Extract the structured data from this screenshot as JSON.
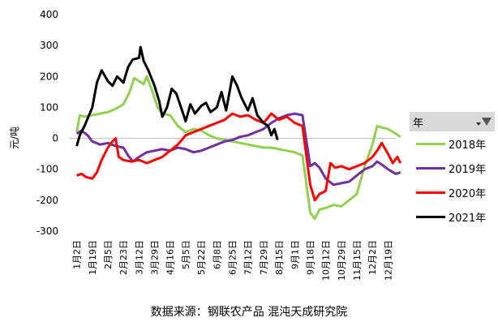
{
  "chart_data": {
    "type": "line",
    "ylabel": "元/吨",
    "ylim": [
      -300,
      400
    ],
    "yticks": [
      400,
      300,
      200,
      100,
      0,
      -100,
      -200,
      -300
    ],
    "ytick_labels": [
      "400",
      "300",
      "200",
      "100",
      "0",
      "-100",
      "-200",
      "-300"
    ],
    "grid": false,
    "legend_position": "right",
    "legend_title": "年",
    "x_tick_labels": [
      "1月2日",
      "1月19日",
      "2月5日",
      "2月23日",
      "3月12日",
      "3月29日",
      "4月16日",
      "5月5日",
      "5月22日",
      "6月8日",
      "6月25日",
      "7月12日",
      "7月29日",
      "8月15日",
      "9月1日",
      "9月18日",
      "10月12日",
      "10月29日",
      "11月15日",
      "12月2日",
      "12月19日"
    ],
    "x_count": 21,
    "series": [
      {
        "name": "2018年",
        "color": "#92d050",
        "points": [
          [
            0,
            20
          ],
          [
            0.2,
            75
          ],
          [
            0.5,
            70
          ],
          [
            1,
            75
          ],
          [
            1.5,
            80
          ],
          [
            2,
            85
          ],
          [
            2.5,
            95
          ],
          [
            3,
            110
          ],
          [
            3.4,
            150
          ],
          [
            3.7,
            195
          ],
          [
            4,
            185
          ],
          [
            4.3,
            175
          ],
          [
            4.5,
            200
          ],
          [
            4.8,
            160
          ],
          [
            5.2,
            100
          ],
          [
            5.5,
            80
          ],
          [
            6,
            75
          ],
          [
            6.5,
            40
          ],
          [
            7,
            20
          ],
          [
            7.5,
            30
          ],
          [
            8,
            25
          ],
          [
            8.5,
            10
          ],
          [
            9,
            0
          ],
          [
            9.5,
            -5
          ],
          [
            10,
            -10
          ],
          [
            10.5,
            -15
          ],
          [
            11,
            -20
          ],
          [
            11.5,
            -25
          ],
          [
            12,
            -30
          ],
          [
            12.5,
            -30
          ],
          [
            13,
            -35
          ],
          [
            13.5,
            -40
          ],
          [
            14,
            -45
          ],
          [
            14.5,
            -55
          ],
          [
            15,
            -240
          ],
          [
            15.3,
            -260
          ],
          [
            15.6,
            -230
          ],
          [
            16,
            -225
          ],
          [
            16.5,
            -215
          ],
          [
            17,
            -220
          ],
          [
            17.5,
            -200
          ],
          [
            18,
            -180
          ],
          [
            18.5,
            -90
          ],
          [
            19,
            -20
          ],
          [
            19.3,
            40
          ],
          [
            19.6,
            35
          ],
          [
            20,
            30
          ],
          [
            20.5,
            15
          ],
          [
            20.8,
            5
          ]
        ]
      },
      {
        "name": "2019年",
        "color": "#7030a0",
        "points": [
          [
            0,
            15
          ],
          [
            0.3,
            25
          ],
          [
            0.7,
            10
          ],
          [
            1,
            -10
          ],
          [
            1.5,
            -20
          ],
          [
            2,
            -15
          ],
          [
            2.5,
            -25
          ],
          [
            3,
            -30
          ],
          [
            3.3,
            -55
          ],
          [
            3.6,
            -75
          ],
          [
            4,
            -60
          ],
          [
            4.5,
            -45
          ],
          [
            5,
            -40
          ],
          [
            5.5,
            -35
          ],
          [
            6,
            -40
          ],
          [
            6.5,
            -30
          ],
          [
            7,
            -35
          ],
          [
            7.5,
            -45
          ],
          [
            8,
            -40
          ],
          [
            8.5,
            -30
          ],
          [
            9,
            -20
          ],
          [
            9.5,
            -10
          ],
          [
            10,
            -5
          ],
          [
            10.5,
            5
          ],
          [
            11,
            10
          ],
          [
            11.5,
            20
          ],
          [
            12,
            30
          ],
          [
            12.5,
            50
          ],
          [
            13,
            65
          ],
          [
            13.5,
            75
          ],
          [
            14,
            80
          ],
          [
            14.5,
            75
          ],
          [
            15,
            -90
          ],
          [
            15.3,
            -80
          ],
          [
            15.6,
            -95
          ],
          [
            16,
            -130
          ],
          [
            16.5,
            -150
          ],
          [
            17,
            -145
          ],
          [
            17.5,
            -140
          ],
          [
            18,
            -120
          ],
          [
            18.5,
            -100
          ],
          [
            19,
            -90
          ],
          [
            19.3,
            -75
          ],
          [
            19.6,
            -85
          ],
          [
            20,
            -100
          ],
          [
            20.5,
            -115
          ],
          [
            20.8,
            -110
          ]
        ]
      },
      {
        "name": "2020年",
        "color": "#ff0000",
        "points": [
          [
            0,
            -120
          ],
          [
            0.3,
            -115
          ],
          [
            0.6,
            -125
          ],
          [
            1,
            -130
          ],
          [
            1.3,
            -110
          ],
          [
            1.6,
            -70
          ],
          [
            2,
            -30
          ],
          [
            2.3,
            -10
          ],
          [
            2.5,
            0
          ],
          [
            2.7,
            -60
          ],
          [
            3,
            -70
          ],
          [
            3.5,
            -75
          ],
          [
            4,
            -70
          ],
          [
            4.5,
            -80
          ],
          [
            5,
            -70
          ],
          [
            5.5,
            -60
          ],
          [
            6,
            -40
          ],
          [
            6.5,
            -20
          ],
          [
            7,
            10
          ],
          [
            7.5,
            20
          ],
          [
            8,
            30
          ],
          [
            8.5,
            40
          ],
          [
            9,
            50
          ],
          [
            9.5,
            60
          ],
          [
            10,
            80
          ],
          [
            10.5,
            70
          ],
          [
            11,
            75
          ],
          [
            11.5,
            60
          ],
          [
            12,
            50
          ],
          [
            12.5,
            80
          ],
          [
            13,
            60
          ],
          [
            13.5,
            70
          ],
          [
            14,
            50
          ],
          [
            14.5,
            40
          ],
          [
            15,
            -150
          ],
          [
            15.3,
            -200
          ],
          [
            15.6,
            -180
          ],
          [
            16,
            -170
          ],
          [
            16.3,
            -80
          ],
          [
            16.6,
            -95
          ],
          [
            17,
            -90
          ],
          [
            17.5,
            -100
          ],
          [
            18,
            -90
          ],
          [
            18.5,
            -80
          ],
          [
            19,
            -60
          ],
          [
            19.3,
            -40
          ],
          [
            19.6,
            -15
          ],
          [
            20,
            -50
          ],
          [
            20.3,
            -80
          ],
          [
            20.6,
            -60
          ],
          [
            20.8,
            -80
          ]
        ]
      },
      {
        "name": "2021年",
        "color": "#000000",
        "points": [
          [
            0,
            -25
          ],
          [
            0.2,
            10
          ],
          [
            0.5,
            40
          ],
          [
            1,
            100
          ],
          [
            1.3,
            180
          ],
          [
            1.6,
            220
          ],
          [
            2,
            185
          ],
          [
            2.3,
            170
          ],
          [
            2.6,
            200
          ],
          [
            3,
            180
          ],
          [
            3.3,
            230
          ],
          [
            3.6,
            255
          ],
          [
            4,
            260
          ],
          [
            4.1,
            295
          ],
          [
            4.3,
            250
          ],
          [
            4.6,
            220
          ],
          [
            5,
            170
          ],
          [
            5.3,
            120
          ],
          [
            5.5,
            70
          ],
          [
            5.8,
            100
          ],
          [
            6.1,
            160
          ],
          [
            6.4,
            145
          ],
          [
            6.7,
            100
          ],
          [
            7,
            55
          ],
          [
            7.3,
            110
          ],
          [
            7.6,
            80
          ],
          [
            8,
            105
          ],
          [
            8.3,
            115
          ],
          [
            8.6,
            85
          ],
          [
            9,
            100
          ],
          [
            9.3,
            150
          ],
          [
            9.6,
            90
          ],
          [
            10,
            200
          ],
          [
            10.3,
            170
          ],
          [
            10.6,
            130
          ],
          [
            11,
            90
          ],
          [
            11.3,
            130
          ],
          [
            11.6,
            75
          ],
          [
            12,
            50
          ],
          [
            12.3,
            40
          ],
          [
            12.5,
            10
          ],
          [
            12.7,
            30
          ],
          [
            12.9,
            -5
          ]
        ]
      }
    ]
  },
  "legend": {
    "title": "年",
    "items": [
      {
        "label": "2018年",
        "color": "#92d050"
      },
      {
        "label": "2019年",
        "color": "#7030a0"
      },
      {
        "label": "2020年",
        "color": "#ff0000"
      },
      {
        "label": "2021年",
        "color": "#000000"
      }
    ]
  },
  "source": "数据来源：钢联农产品 混沌天成研究院"
}
